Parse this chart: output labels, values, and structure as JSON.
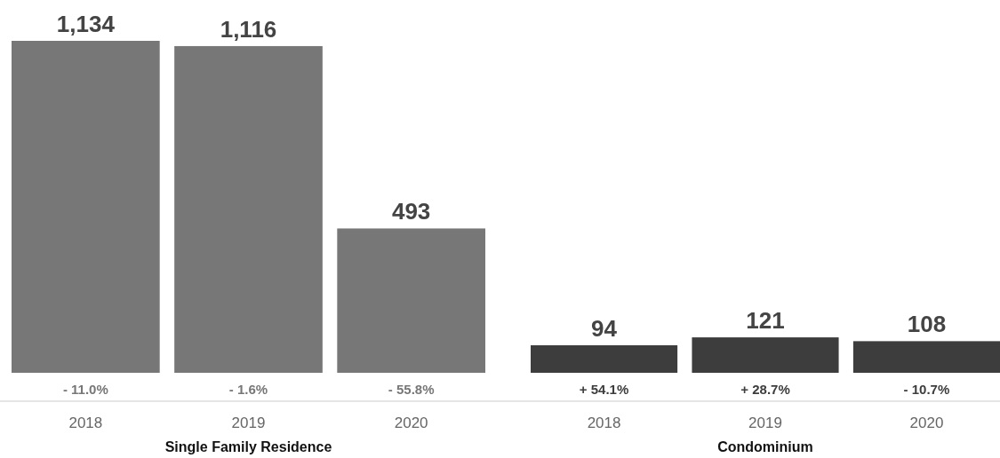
{
  "chart_data": [
    {
      "type": "bar",
      "categories": [
        "2018",
        "2019",
        "2020"
      ],
      "values": [
        1134,
        1116,
        493
      ],
      "value_labels": [
        "1,134",
        "1,116",
        "493"
      ],
      "color": "#777777",
      "tick_labels": "x",
      "xlabel": "Single Family Residence",
      "annotations": [
        "- 11.0%",
        "- 1.6%",
        "- 55.8%"
      ]
    },
    {
      "type": "bar",
      "categories": [
        "2018",
        "2019",
        "2020"
      ],
      "values": [
        94,
        121,
        108
      ],
      "value_labels": [
        "94",
        "121",
        "108"
      ],
      "color": "#3d3d3d",
      "tick_labels": "x",
      "xlabel": "Condominium",
      "annotations": [
        "+ 54.1%",
        "+ 28.7%",
        "- 10.7%"
      ]
    }
  ]
}
